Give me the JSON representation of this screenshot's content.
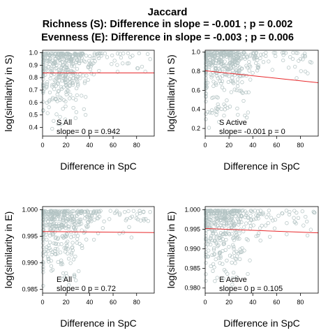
{
  "figure": {
    "title": "Jaccard",
    "subtitle_richness": "Richness (S): Difference in slope = -0.001 ; p = 0.002",
    "subtitle_evenness": "Evenness (E): Difference in slope = -0.003 ; p = 0.006"
  },
  "colors": {
    "points": "#b4c4c4",
    "fit_line": "#e8282b",
    "axes": "#000000"
  },
  "chart_data": [
    {
      "type": "scatter",
      "panel": "S All",
      "xlabel": "Difference in  SpC",
      "ylabel": "log(similarity in S)",
      "xlim": [
        0,
        95
      ],
      "ylim": [
        0.33,
        1.02
      ],
      "xticks": [
        "0",
        "20",
        "40",
        "60",
        "80"
      ],
      "yticks": [
        "0.4",
        "0.5",
        "0.6",
        "0.7",
        "0.8",
        "0.9",
        "1.0"
      ],
      "annotation_name": "S All",
      "annotation_stats": "slope= 0  p =  0.942",
      "fit": {
        "x": [
          0,
          95
        ],
        "y": [
          0.838,
          0.838
        ]
      },
      "cloud": {
        "x_center": 15,
        "y_top": 0.995,
        "y_bottom": 0.36,
        "n": 420
      }
    },
    {
      "type": "scatter",
      "panel": "S Active",
      "xlabel": "Difference in  SpC",
      "ylabel": "log(similarity in S)",
      "xlim": [
        0,
        95
      ],
      "ylim": [
        0.12,
        1.02
      ],
      "xticks": [
        "0",
        "20",
        "40",
        "60",
        "80"
      ],
      "yticks": [
        "0.2",
        "0.4",
        "0.6",
        "0.8",
        "1.0"
      ],
      "annotation_name": "S Active",
      "annotation_stats": "slope= -0.001  p =  0",
      "fit": {
        "x": [
          0,
          95
        ],
        "y": [
          0.805,
          0.68
        ]
      },
      "cloud": {
        "x_center": 15,
        "y_top": 0.995,
        "y_bottom": 0.15,
        "n": 420
      }
    },
    {
      "type": "scatter",
      "panel": "E All",
      "xlabel": "Difference in  SpC",
      "ylabel": "log(similarity in E)",
      "xlim": [
        0,
        95
      ],
      "ylim": [
        0.9843,
        1.0006
      ],
      "xticks": [
        "0",
        "20",
        "40",
        "60",
        "80"
      ],
      "yticks": [
        "0.985",
        "0.990",
        "0.995",
        "1.000"
      ],
      "annotation_name": "E All",
      "annotation_stats": "slope= 0  p =  0.72",
      "fit": {
        "x": [
          0,
          95
        ],
        "y": [
          0.9959,
          0.9957
        ]
      },
      "cloud": {
        "x_center": 15,
        "y_top": 0.9998,
        "y_bottom": 0.9848,
        "n": 420
      }
    },
    {
      "type": "scatter",
      "panel": "E Active",
      "xlabel": "Difference in  SpC",
      "ylabel": "log(similarity in E)",
      "xlim": [
        0,
        95
      ],
      "ylim": [
        0.9787,
        1.0008
      ],
      "xticks": [
        "0",
        "20",
        "40",
        "60",
        "80"
      ],
      "yticks": [
        "0.980",
        "0.985",
        "0.990",
        "0.995",
        "1.000"
      ],
      "annotation_name": "E Active",
      "annotation_stats": "slope= 0  p =  0.105",
      "fit": {
        "x": [
          0,
          95
        ],
        "y": [
          0.9952,
          0.9941
        ]
      },
      "cloud": {
        "x_center": 15,
        "y_top": 0.9998,
        "y_bottom": 0.9795,
        "n": 420
      }
    }
  ]
}
